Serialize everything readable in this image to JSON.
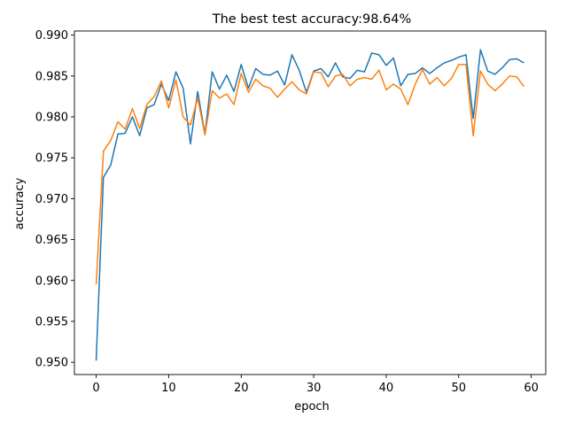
{
  "chart_data": {
    "type": "line",
    "title": "The best test accuracy:98.64%",
    "xlabel": "epoch",
    "ylabel": "accuracy",
    "xlim": [
      -3,
      62
    ],
    "ylim": [
      0.9485,
      0.9905
    ],
    "xticks": [
      0,
      10,
      20,
      30,
      40,
      50,
      60
    ],
    "yticks": [
      0.95,
      0.955,
      0.96,
      0.965,
      0.97,
      0.975,
      0.98,
      0.985,
      0.99
    ],
    "ytick_labels": [
      "0.950",
      "0.955",
      "0.960",
      "0.965",
      "0.970",
      "0.975",
      "0.980",
      "0.985",
      "0.990"
    ],
    "grid": false,
    "legend": "none",
    "x": [
      0,
      1,
      2,
      3,
      4,
      5,
      6,
      7,
      8,
      9,
      10,
      11,
      12,
      13,
      14,
      15,
      16,
      17,
      18,
      19,
      20,
      21,
      22,
      23,
      24,
      25,
      26,
      27,
      28,
      29,
      30,
      31,
      32,
      33,
      34,
      35,
      36,
      37,
      38,
      39,
      40,
      41,
      42,
      43,
      44,
      45,
      46,
      47,
      48,
      49,
      50,
      51,
      52,
      53,
      54,
      55,
      56,
      57,
      58,
      59
    ],
    "series": [
      {
        "color": "#1f77b4",
        "values": [
          0.9502,
          0.9726,
          0.9741,
          0.9779,
          0.978,
          0.98,
          0.9777,
          0.9811,
          0.9815,
          0.984,
          0.982,
          0.9855,
          0.9835,
          0.9767,
          0.9831,
          0.9779,
          0.9855,
          0.9834,
          0.9851,
          0.9831,
          0.9864,
          0.9835,
          0.9859,
          0.9852,
          0.9851,
          0.9856,
          0.9839,
          0.9876,
          0.9857,
          0.983,
          0.9856,
          0.9859,
          0.9849,
          0.9866,
          0.9849,
          0.9847,
          0.9857,
          0.9855,
          0.9878,
          0.9876,
          0.9863,
          0.9872,
          0.9838,
          0.9852,
          0.9853,
          0.986,
          0.9853,
          0.986,
          0.9866,
          0.9869,
          0.9873,
          0.9876,
          0.9798,
          0.9882,
          0.9856,
          0.9852,
          0.986,
          0.987,
          0.9871,
          0.9866
        ]
      },
      {
        "color": "#ff7f0e",
        "values": [
          0.9595,
          0.9758,
          0.9771,
          0.9794,
          0.9785,
          0.981,
          0.9786,
          0.9815,
          0.9825,
          0.9844,
          0.9811,
          0.9845,
          0.98,
          0.979,
          0.9823,
          0.9778,
          0.9832,
          0.9823,
          0.9828,
          0.9815,
          0.9853,
          0.983,
          0.9846,
          0.9838,
          0.9835,
          0.9824,
          0.9834,
          0.9843,
          0.9833,
          0.9828,
          0.9855,
          0.9854,
          0.9837,
          0.985,
          0.9852,
          0.9838,
          0.9846,
          0.9848,
          0.9846,
          0.9857,
          0.9833,
          0.984,
          0.9834,
          0.9815,
          0.984,
          0.9858,
          0.984,
          0.9848,
          0.9838,
          0.9847,
          0.9864,
          0.9864,
          0.9777,
          0.9856,
          0.984,
          0.9832,
          0.984,
          0.985,
          0.9849,
          0.9837
        ]
      }
    ]
  }
}
